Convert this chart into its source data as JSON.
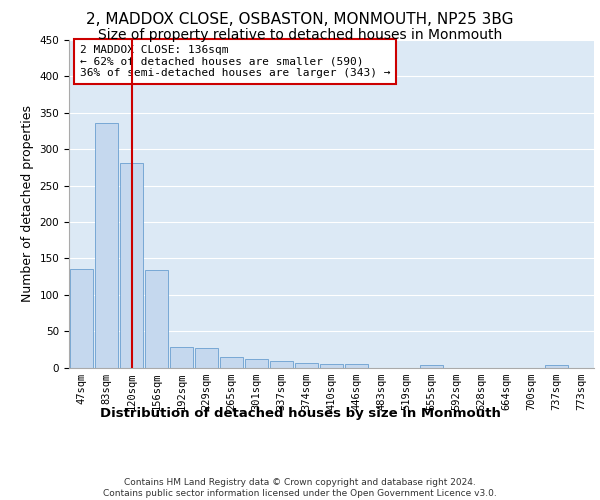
{
  "title": "2, MADDOX CLOSE, OSBASTON, MONMOUTH, NP25 3BG",
  "subtitle": "Size of property relative to detached houses in Monmouth",
  "xlabel": "Distribution of detached houses by size in Monmouth",
  "ylabel": "Number of detached properties",
  "categories": [
    "47sqm",
    "83sqm",
    "120sqm",
    "156sqm",
    "192sqm",
    "229sqm",
    "265sqm",
    "301sqm",
    "337sqm",
    "374sqm",
    "410sqm",
    "446sqm",
    "483sqm",
    "519sqm",
    "555sqm",
    "592sqm",
    "628sqm",
    "664sqm",
    "700sqm",
    "737sqm",
    "773sqm"
  ],
  "values": [
    136,
    336,
    281,
    134,
    28,
    27,
    15,
    12,
    9,
    6,
    5,
    5,
    0,
    0,
    4,
    0,
    0,
    0,
    0,
    4,
    0
  ],
  "bar_color": "#c5d8ee",
  "bar_edge_color": "#6a9fd0",
  "red_line_x": 2.0,
  "annotation_text": "2 MADDOX CLOSE: 136sqm\n← 62% of detached houses are smaller (590)\n36% of semi-detached houses are larger (343) →",
  "annotation_box_color": "#ffffff",
  "annotation_box_edge": "#cc0000",
  "footer": "Contains HM Land Registry data © Crown copyright and database right 2024.\nContains public sector information licensed under the Open Government Licence v3.0.",
  "ylim": [
    0,
    450
  ],
  "background_color": "#dce9f5",
  "grid_color": "#ffffff",
  "title_fontsize": 11,
  "subtitle_fontsize": 10,
  "label_fontsize": 9,
  "tick_fontsize": 7.5,
  "footer_fontsize": 6.5
}
